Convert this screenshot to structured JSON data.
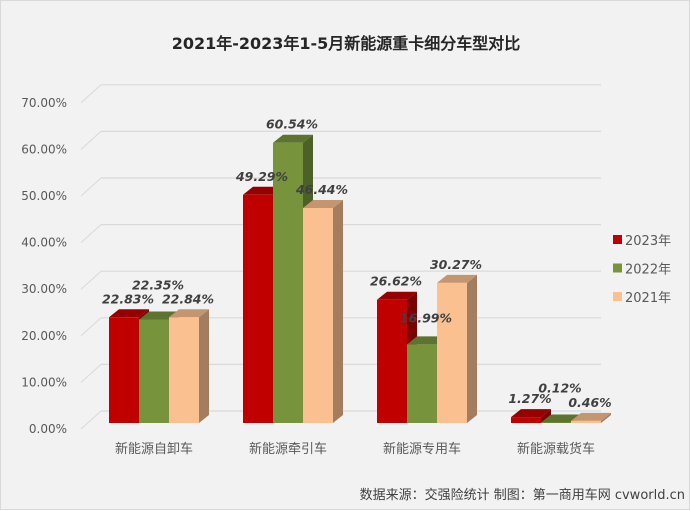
{
  "chart_data": {
    "type": "bar",
    "title": "2021年-2023年1-5月新能源重卡细分车型对比",
    "categories": [
      "新能源自卸车",
      "新能源牵引车",
      "新能源专用车",
      "新能源载货车"
    ],
    "series": [
      {
        "name": "2023年",
        "color": "#c00000",
        "values": [
          22.83,
          49.29,
          26.62,
          1.27
        ],
        "labels": [
          "22.83%",
          "49.29%",
          "26.62%",
          "1.27%"
        ]
      },
      {
        "name": "2022年",
        "color": "#77933c",
        "values": [
          22.35,
          60.54,
          16.99,
          0.12
        ],
        "labels": [
          "22.35%",
          "60.54%",
          "16.99%",
          "0.12%"
        ]
      },
      {
        "name": "2021年",
        "color": "#fac090",
        "values": [
          22.84,
          46.44,
          30.27,
          0.46
        ],
        "labels": [
          "22.84%",
          "46.44%",
          "30.27%",
          "0.46%"
        ]
      }
    ],
    "ylim": [
      0,
      70
    ],
    "yticks": [
      "0.00%",
      "10.00%",
      "20.00%",
      "30.00%",
      "40.00%",
      "50.00%",
      "60.00%",
      "70.00%"
    ],
    "grid": true,
    "legend": "right",
    "xlabel": "",
    "ylabel": ""
  },
  "footer": "数据来源：交强险统计  制图：第一商用车网 cvworld.cn"
}
